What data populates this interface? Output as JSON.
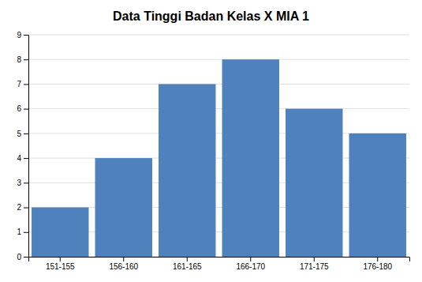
{
  "chart_data": {
    "type": "bar",
    "title": "Data Tinggi Badan Kelas X MIA 1",
    "categories": [
      "151-155",
      "156-160",
      "161-165",
      "166-170",
      "171-175",
      "176-180"
    ],
    "values": [
      2,
      4,
      7,
      8,
      6,
      5
    ],
    "color": "#4F81BD",
    "ylim": [
      0,
      9
    ],
    "yticks": [
      0,
      1,
      2,
      3,
      4,
      5,
      6,
      7,
      8,
      9
    ],
    "grid": true
  }
}
